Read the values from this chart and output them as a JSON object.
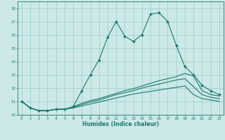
{
  "title": "",
  "xlabel": "Humidex (Indice chaleur)",
  "ylabel": "",
  "xlim": [
    -0.5,
    23.5
  ],
  "ylim": [
    10.0,
    18.5
  ],
  "yticks": [
    10,
    11,
    12,
    13,
    14,
    15,
    16,
    17,
    18
  ],
  "xticks": [
    0,
    1,
    2,
    3,
    4,
    5,
    6,
    7,
    8,
    9,
    10,
    11,
    12,
    13,
    14,
    15,
    16,
    17,
    18,
    19,
    20,
    21,
    22,
    23
  ],
  "bg_color": "#cce8e8",
  "grid_color": "#99cccc",
  "line_color": "#1a7a6e",
  "line1_x": [
    0,
    1,
    2,
    3,
    4,
    5,
    6,
    7,
    8,
    9,
    10,
    11,
    12,
    13,
    14,
    15,
    16,
    17,
    18,
    19,
    20,
    21,
    22,
    23
  ],
  "line1_y": [
    11.0,
    10.5,
    10.3,
    10.3,
    10.4,
    10.4,
    10.6,
    11.8,
    13.0,
    14.1,
    15.8,
    17.0,
    15.9,
    15.5,
    16.0,
    17.55,
    17.65,
    17.0,
    15.2,
    13.6,
    13.0,
    12.2,
    11.8,
    11.5
  ],
  "line2_x": [
    0,
    1,
    2,
    3,
    4,
    5,
    6,
    7,
    8,
    9,
    10,
    11,
    12,
    13,
    14,
    15,
    16,
    17,
    18,
    19,
    20,
    21,
    22,
    23
  ],
  "line2_y": [
    11.0,
    10.5,
    10.3,
    10.3,
    10.4,
    10.4,
    10.6,
    10.85,
    11.05,
    11.2,
    11.4,
    11.6,
    11.8,
    11.95,
    12.15,
    12.35,
    12.55,
    12.7,
    12.85,
    13.1,
    12.9,
    11.8,
    11.5,
    11.4
  ],
  "line3_x": [
    0,
    1,
    2,
    3,
    4,
    5,
    6,
    7,
    8,
    9,
    10,
    11,
    12,
    13,
    14,
    15,
    16,
    17,
    18,
    19,
    20,
    21,
    22,
    23
  ],
  "line3_y": [
    11.0,
    10.5,
    10.3,
    10.3,
    10.4,
    10.4,
    10.55,
    10.75,
    10.95,
    11.1,
    11.3,
    11.5,
    11.65,
    11.8,
    12.0,
    12.15,
    12.3,
    12.45,
    12.6,
    12.7,
    12.1,
    11.5,
    11.3,
    11.2
  ],
  "line4_x": [
    0,
    1,
    2,
    3,
    4,
    5,
    6,
    7,
    8,
    9,
    10,
    11,
    12,
    13,
    14,
    15,
    16,
    17,
    18,
    19,
    20,
    21,
    22,
    23
  ],
  "line4_y": [
    11.0,
    10.5,
    10.3,
    10.3,
    10.4,
    10.4,
    10.5,
    10.65,
    10.8,
    10.95,
    11.1,
    11.25,
    11.4,
    11.55,
    11.65,
    11.75,
    11.85,
    11.95,
    12.05,
    12.15,
    11.5,
    11.2,
    11.1,
    11.0
  ]
}
